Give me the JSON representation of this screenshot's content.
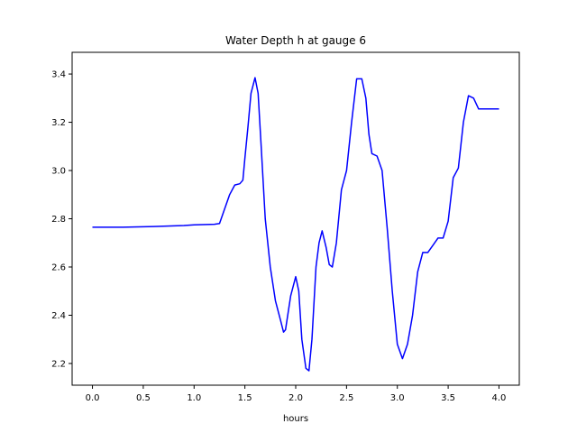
{
  "chart_data": {
    "type": "line",
    "title": "Water Depth h at gauge 6",
    "xlabel": "hours",
    "ylabel": "",
    "xlim": [
      -0.2,
      4.2
    ],
    "ylim": [
      2.11,
      3.49
    ],
    "grid": false,
    "xticks": [
      0.0,
      0.5,
      1.0,
      1.5,
      2.0,
      2.5,
      3.0,
      3.5,
      4.0
    ],
    "xtick_labels": [
      "0.0",
      "0.5",
      "1.0",
      "1.5",
      "2.0",
      "2.5",
      "3.0",
      "3.5",
      "4.0"
    ],
    "yticks": [
      2.2,
      2.4,
      2.6,
      2.8,
      3.0,
      3.2,
      3.4
    ],
    "ytick_labels": [
      "2.2",
      "2.4",
      "2.6",
      "2.8",
      "3.0",
      "3.2",
      "3.4"
    ],
    "series": [
      {
        "color": "#0000ff",
        "x": [
          0.0,
          0.3,
          0.6,
          0.9,
          1.0,
          1.2,
          1.25,
          1.3,
          1.35,
          1.4,
          1.45,
          1.48,
          1.5,
          1.53,
          1.56,
          1.6,
          1.63,
          1.66,
          1.7,
          1.75,
          1.8,
          1.85,
          1.88,
          1.9,
          1.95,
          2.0,
          2.03,
          2.06,
          2.1,
          2.13,
          2.16,
          2.2,
          2.23,
          2.26,
          2.3,
          2.33,
          2.36,
          2.4,
          2.45,
          2.5,
          2.55,
          2.6,
          2.65,
          2.69,
          2.72,
          2.75,
          2.8,
          2.85,
          2.9,
          2.95,
          3.0,
          3.05,
          3.1,
          3.15,
          3.2,
          3.25,
          3.3,
          3.35,
          3.4,
          3.45,
          3.5,
          3.55,
          3.6,
          3.65,
          3.7,
          3.75,
          3.8,
          3.85,
          3.9,
          3.93,
          3.96,
          4.0
        ],
        "y": [
          2.765,
          2.765,
          2.768,
          2.772,
          2.775,
          2.777,
          2.78,
          2.84,
          2.9,
          2.94,
          2.945,
          2.96,
          3.05,
          3.18,
          3.32,
          3.385,
          3.32,
          3.1,
          2.8,
          2.6,
          2.46,
          2.38,
          2.33,
          2.34,
          2.48,
          2.56,
          2.5,
          2.3,
          2.18,
          2.17,
          2.3,
          2.6,
          2.7,
          2.75,
          2.68,
          2.61,
          2.6,
          2.7,
          2.92,
          3.0,
          3.2,
          3.38,
          3.38,
          3.3,
          3.15,
          3.07,
          3.06,
          3.0,
          2.76,
          2.5,
          2.28,
          2.22,
          2.28,
          2.4,
          2.58,
          2.66,
          2.66,
          2.69,
          2.72,
          2.72,
          2.79,
          2.97,
          3.01,
          3.2,
          3.31,
          3.3,
          3.255,
          3.255,
          3.255,
          3.255,
          3.255,
          3.255
        ]
      }
    ]
  }
}
